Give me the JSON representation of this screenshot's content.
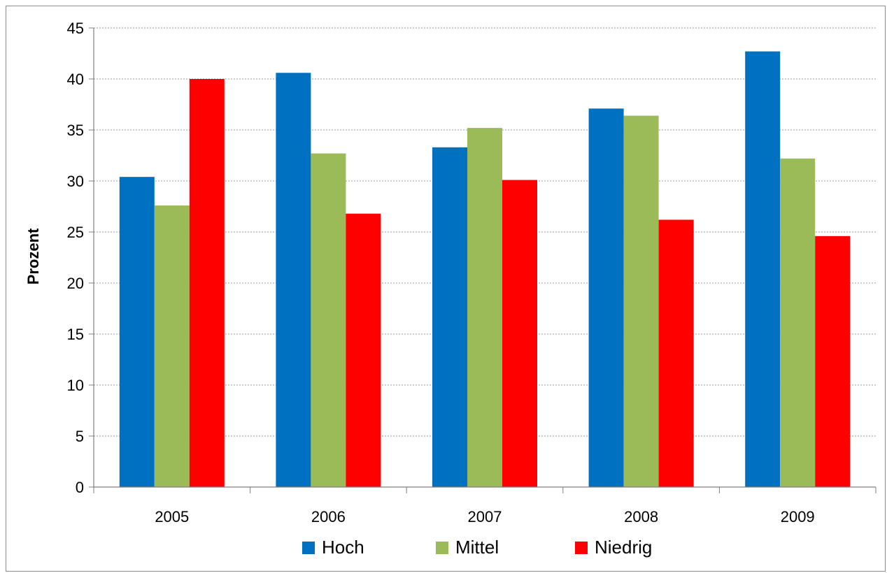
{
  "chart_data": {
    "type": "bar",
    "title": "",
    "xlabel": "",
    "ylabel": "Prozent",
    "categories": [
      "2005",
      "2006",
      "2007",
      "2008",
      "2009"
    ],
    "series": [
      {
        "name": "Hoch",
        "color": "#0070C0",
        "values": [
          30.4,
          40.6,
          33.3,
          37.1,
          42.7
        ]
      },
      {
        "name": "Mittel",
        "color": "#9BBB59",
        "values": [
          27.6,
          32.7,
          35.2,
          36.4,
          32.2
        ]
      },
      {
        "name": "Niedrig",
        "color": "#FF0000",
        "values": [
          40.0,
          26.8,
          30.1,
          26.2,
          24.6
        ]
      }
    ],
    "ylim": [
      0,
      45
    ],
    "yticks": [
      0,
      5,
      10,
      15,
      20,
      25,
      30,
      35,
      40,
      45
    ],
    "grid": "horizontal-dashed",
    "legend_position": "bottom"
  }
}
